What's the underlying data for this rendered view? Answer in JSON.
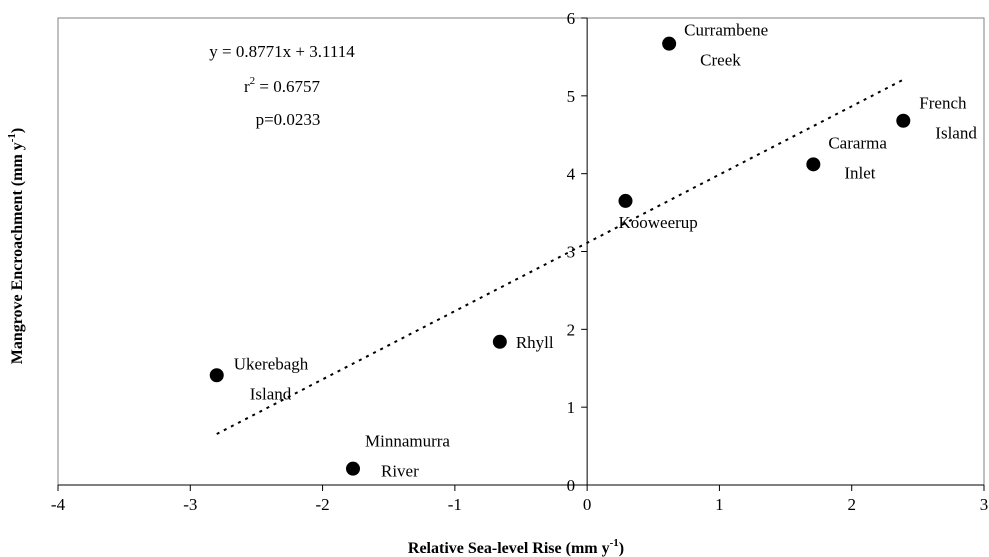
{
  "chart_data": {
    "type": "scatter",
    "xlabel": "Relative Sea-level Rise (mm y",
    "xlabel_sup": "-1",
    "xlabel_suffix": ")",
    "ylabel": "Mangrove Encroachment (mm y",
    "ylabel_sup": "-1",
    "ylabel_suffix": ")",
    "xlim": [
      -4,
      3
    ],
    "ylim": [
      0,
      6
    ],
    "x_ticks": [
      "-4",
      "-3",
      "-2",
      "-1",
      "0",
      "1",
      "2",
      "3"
    ],
    "y_ticks": [
      "0",
      "1",
      "2",
      "3",
      "4",
      "5",
      "6"
    ],
    "grid": false,
    "points": [
      {
        "label": [
          "Ukerebagh",
          "Island"
        ],
        "x": -2.8,
        "y": 1.41
      },
      {
        "label": [
          "Minnamurra",
          "River"
        ],
        "x": -1.77,
        "y": 0.21
      },
      {
        "label": [
          "Rhyll"
        ],
        "x": -0.66,
        "y": 1.84
      },
      {
        "label": [
          "Kooweerup"
        ],
        "x": 0.29,
        "y": 3.65
      },
      {
        "label": [
          "Currambene",
          "Creek"
        ],
        "x": 0.62,
        "y": 5.67
      },
      {
        "label": [
          "Cararma",
          "Inlet"
        ],
        "x": 1.71,
        "y": 4.12
      },
      {
        "label": [
          "French",
          "Island"
        ],
        "x": 2.39,
        "y": 4.68
      }
    ],
    "trendline": {
      "slope": 0.8771,
      "intercept": 3.1114,
      "x_start": -2.8,
      "x_end": 2.39,
      "style": "dotted"
    },
    "annotations": {
      "equation": "y = 0.8771x + 3.1114",
      "r2_prefix": "r",
      "r2_sup": "2",
      "r2_value": " = 0.6757",
      "p_value": "p=0.0233"
    }
  }
}
